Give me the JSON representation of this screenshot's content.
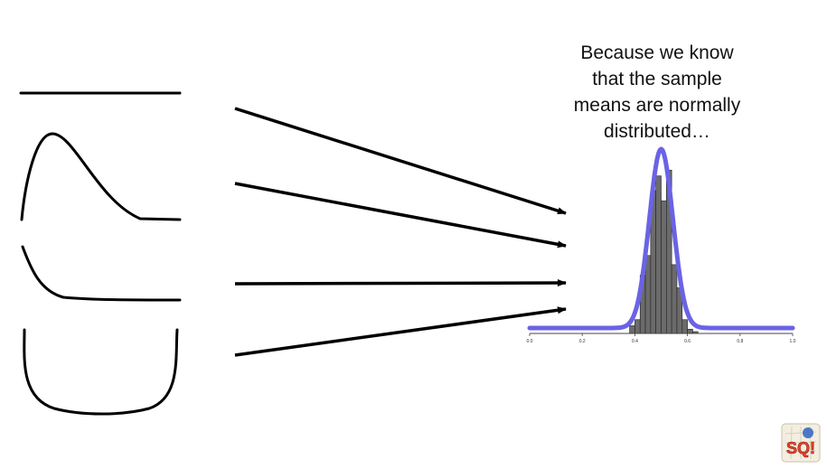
{
  "caption": "Because we know\nthat the sample\nmeans are normally\ndistributed…",
  "histogram": {
    "x_ticks": [
      "0.0",
      "0.2",
      "0.4",
      "0.6",
      "0.8",
      "1.0"
    ],
    "bar_color": "#6b6b6b",
    "curve_color": "#6a63e6"
  },
  "logo": {
    "text": "SQ!",
    "icon": "statquest-logo-icon"
  },
  "colors": {
    "background": "#ffffff",
    "ink": "#000000"
  }
}
